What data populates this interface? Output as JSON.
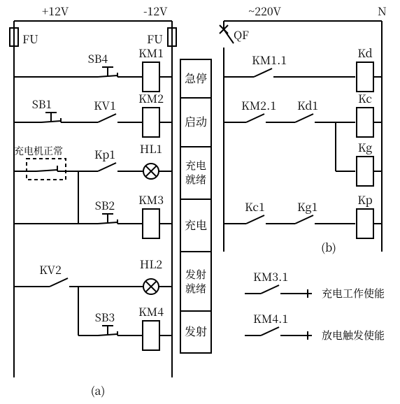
{
  "stroke": "#000000",
  "bg": "#ffffff",
  "font_size": 16,
  "small_font_size": 14,
  "rails": {
    "p12v": "+12V",
    "n12v": "-12V",
    "ac220": "~220V",
    "n": "N"
  },
  "left": {
    "fu1": "FU",
    "fu2": "FU",
    "sb4": "SB4",
    "km1": "KM1",
    "sb1": "SB1",
    "kv1": "KV1",
    "km2": "KM2",
    "charger_ok": "充电机正常",
    "kp1": "Kp1",
    "hl1": "HL1",
    "sb2": "SB2",
    "km3": "KM3",
    "kv2": "KV2",
    "hl2": "HL2",
    "sb3": "SB3",
    "km4": "KM4",
    "sublabel": "(a)"
  },
  "funcs": {
    "estop": "急停",
    "start": "启动",
    "chg_rdy1": "充电",
    "chg_rdy2": "就绪",
    "charge": "充电",
    "fire_rdy1": "发射",
    "fire_rdy2": "就绪",
    "fire": "发射"
  },
  "right": {
    "qf": "QF",
    "km11": "KM1.1",
    "kd": "Kd",
    "km21": "KM2.1",
    "kd1": "Kd1",
    "kc": "Kc",
    "kg": "Kg",
    "kc1": "Kc1",
    "kg1": "Kg1",
    "kp": "Kp",
    "sublabel": "(b)",
    "km31": "KM3.1",
    "km31_note": "充电工作使能",
    "km41": "KM4.1",
    "km41_note": "放电触发使能"
  }
}
